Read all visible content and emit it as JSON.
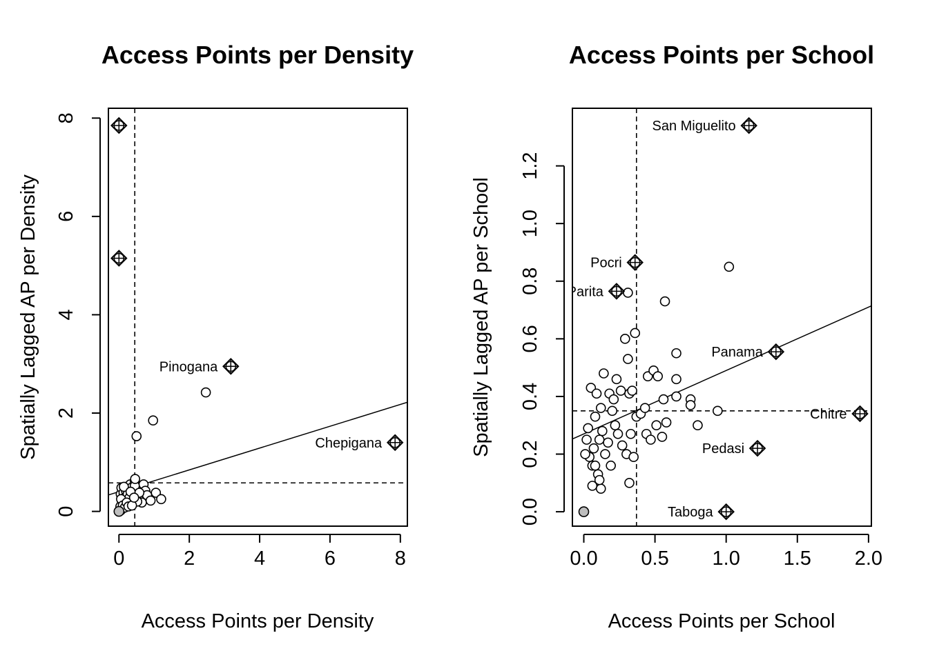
{
  "chart_data": [
    {
      "type": "scatter",
      "title": "Access Points per Density",
      "xlabel": "Access Points per Density",
      "ylabel": "Spatially Lagged AP per Density",
      "xlim": [
        -0.3,
        8.2
      ],
      "ylim": [
        -0.3,
        8.2
      ],
      "xticks": [
        0,
        2,
        4,
        6,
        8
      ],
      "yticks": [
        0,
        2,
        4,
        6,
        8
      ],
      "vline": 0.45,
      "hline": 0.58,
      "regression": {
        "intercept": 0.4,
        "slope": 0.222
      },
      "points": [
        [
          0.05,
          0.02
        ],
        [
          0.08,
          0.15
        ],
        [
          0.1,
          0.3
        ],
        [
          0.12,
          0.45
        ],
        [
          0.15,
          0.2
        ],
        [
          0.18,
          0.35
        ],
        [
          0.2,
          0.1
        ],
        [
          0.22,
          0.5
        ],
        [
          0.25,
          0.25
        ],
        [
          0.28,
          0.4
        ],
        [
          0.3,
          0.15
        ],
        [
          0.32,
          0.55
        ],
        [
          0.35,
          0.3
        ],
        [
          0.38,
          0.2
        ],
        [
          0.4,
          0.45
        ],
        [
          0.42,
          0.35
        ],
        [
          0.45,
          0.6
        ],
        [
          0.48,
          0.25
        ],
        [
          0.5,
          0.4
        ],
        [
          0.55,
          0.3
        ],
        [
          0.6,
          0.5
        ],
        [
          0.65,
          0.18
        ],
        [
          0.7,
          0.55
        ],
        [
          0.75,
          0.42
        ],
        [
          0.8,
          0.33
        ],
        [
          0.9,
          0.22
        ],
        [
          1.05,
          0.38
        ],
        [
          1.2,
          0.25
        ],
        [
          0.05,
          0.35
        ],
        [
          0.07,
          0.48
        ],
        [
          0.1,
          0.22
        ],
        [
          0.13,
          0.38
        ],
        [
          0.16,
          0.28
        ],
        [
          0.2,
          0.42
        ],
        [
          0.25,
          0.35
        ],
        [
          0.3,
          0.28
        ],
        [
          0.35,
          0.48
        ],
        [
          0.4,
          0.18
        ],
        [
          0.45,
          0.52
        ],
        [
          0.52,
          0.2
        ],
        [
          0.58,
          0.38
        ],
        [
          0.04,
          0.1
        ],
        [
          0.06,
          0.25
        ],
        [
          0.09,
          0.05
        ],
        [
          0.11,
          0.12
        ],
        [
          0.14,
          0.5
        ],
        [
          0.17,
          0.08
        ],
        [
          0.22,
          0.18
        ],
        [
          0.27,
          0.1
        ],
        [
          0.33,
          0.4
        ],
        [
          0.37,
          0.12
        ],
        [
          0.43,
          0.28
        ],
        [
          0.46,
          0.66
        ],
        [
          0.5,
          1.53
        ],
        [
          0.97,
          1.85
        ],
        [
          2.47,
          2.42
        ]
      ],
      "zero_points": [
        [
          0,
          0
        ]
      ],
      "influential": [
        {
          "x": 0.0,
          "y": 7.85,
          "label": ""
        },
        {
          "x": 0.0,
          "y": 5.15,
          "label": ""
        },
        {
          "x": 3.18,
          "y": 2.95,
          "label": "Pinogana"
        },
        {
          "x": 7.85,
          "y": 1.4,
          "label": "Chepigana"
        }
      ]
    },
    {
      "type": "scatter",
      "title": "Access Points per School",
      "xlabel": "Access Points per School",
      "ylabel": "Spatially Lagged AP per School",
      "xlim": [
        -0.08,
        2.02
      ],
      "ylim": [
        -0.05,
        1.4
      ],
      "xticks": [
        0.0,
        0.5,
        1.0,
        1.5,
        2.0
      ],
      "xtick_labels": [
        "0.0",
        "0.5",
        "1.0",
        "1.5",
        "2.0"
      ],
      "yticks": [
        0.0,
        0.2,
        0.4,
        0.6,
        0.8,
        1.0,
        1.2
      ],
      "ytick_labels": [
        "0.0",
        "0.2",
        "0.4",
        "0.6",
        "0.8",
        "1.0",
        "1.2"
      ],
      "vline": 0.37,
      "hline": 0.35,
      "regression": {
        "intercept": 0.27,
        "slope": 0.22
      },
      "points": [
        [
          0.02,
          0.25
        ],
        [
          0.04,
          0.19
        ],
        [
          0.05,
          0.43
        ],
        [
          0.06,
          0.16
        ],
        [
          0.07,
          0.22
        ],
        [
          0.08,
          0.33
        ],
        [
          0.09,
          0.41
        ],
        [
          0.1,
          0.13
        ],
        [
          0.11,
          0.25
        ],
        [
          0.12,
          0.36
        ],
        [
          0.13,
          0.28
        ],
        [
          0.14,
          0.48
        ],
        [
          0.15,
          0.2
        ],
        [
          0.17,
          0.24
        ],
        [
          0.18,
          0.41
        ],
        [
          0.19,
          0.16
        ],
        [
          0.2,
          0.35
        ],
        [
          0.21,
          0.39
        ],
        [
          0.22,
          0.3
        ],
        [
          0.23,
          0.46
        ],
        [
          0.24,
          0.27
        ],
        [
          0.26,
          0.42
        ],
        [
          0.27,
          0.23
        ],
        [
          0.29,
          0.6
        ],
        [
          0.3,
          0.2
        ],
        [
          0.31,
          0.53
        ],
        [
          0.32,
          0.41
        ],
        [
          0.33,
          0.27
        ],
        [
          0.34,
          0.42
        ],
        [
          0.35,
          0.19
        ],
        [
          0.36,
          0.62
        ],
        [
          0.37,
          0.33
        ],
        [
          0.4,
          0.34
        ],
        [
          0.43,
          0.36
        ],
        [
          0.44,
          0.27
        ],
        [
          0.45,
          0.47
        ],
        [
          0.47,
          0.25
        ],
        [
          0.49,
          0.49
        ],
        [
          0.51,
          0.3
        ],
        [
          0.52,
          0.47
        ],
        [
          0.55,
          0.26
        ],
        [
          0.56,
          0.39
        ],
        [
          0.57,
          0.73
        ],
        [
          0.58,
          0.31
        ],
        [
          0.65,
          0.55
        ],
        [
          0.65,
          0.46
        ],
        [
          0.65,
          0.4
        ],
        [
          0.75,
          0.39
        ],
        [
          0.75,
          0.37
        ],
        [
          0.8,
          0.3
        ],
        [
          0.94,
          0.35
        ],
        [
          1.02,
          0.85
        ],
        [
          0.31,
          0.76
        ],
        [
          0.32,
          0.1
        ],
        [
          0.06,
          0.09
        ],
        [
          0.12,
          0.08
        ],
        [
          0.11,
          0.11
        ],
        [
          0.01,
          0.2
        ],
        [
          0.03,
          0.29
        ],
        [
          0.08,
          0.16
        ]
      ],
      "zero_points": [
        [
          0,
          0
        ]
      ],
      "influential": [
        {
          "x": 1.16,
          "y": 1.34,
          "label": "San Miguelito"
        },
        {
          "x": 0.36,
          "y": 0.865,
          "label": "Pocri"
        },
        {
          "x": 0.23,
          "y": 0.765,
          "label": "Parita"
        },
        {
          "x": 1.35,
          "y": 0.555,
          "label": "Panama"
        },
        {
          "x": 1.94,
          "y": 0.34,
          "label": "Chitre"
        },
        {
          "x": 1.22,
          "y": 0.22,
          "label": "Pedasi"
        },
        {
          "x": 1.0,
          "y": 0.0,
          "label": "Taboga"
        }
      ]
    }
  ]
}
